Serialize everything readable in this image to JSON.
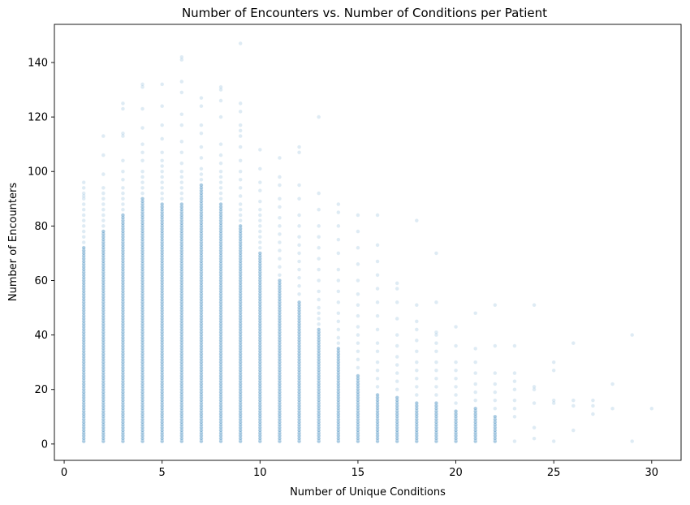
{
  "chart_data": {
    "type": "scatter",
    "title": "Number of Encounters vs. Number of Conditions per Patient",
    "xlabel": "Number of Unique Conditions",
    "ylabel": "Number of Encounters",
    "xlim": [
      -0.5,
      31.5
    ],
    "ylim": [
      -6,
      154
    ],
    "x_ticks": [
      0,
      5,
      10,
      15,
      20,
      25,
      30
    ],
    "y_ticks": [
      0,
      20,
      40,
      60,
      80,
      100,
      120,
      140
    ],
    "grid": false,
    "legend": "none",
    "marker_color": "#1f77b4",
    "marker_alpha": 0.15,
    "columns": [
      {
        "x": 1,
        "dense_max": 72,
        "extra": [
          74,
          76,
          78,
          80,
          82,
          84,
          86,
          88,
          90,
          91,
          92,
          94,
          96
        ]
      },
      {
        "x": 2,
        "dense_max": 78,
        "extra": [
          80,
          82,
          84,
          86,
          88,
          90,
          92,
          94,
          99,
          106,
          113
        ]
      },
      {
        "x": 3,
        "dense_max": 84,
        "extra": [
          86,
          88,
          90,
          92,
          94,
          97,
          100,
          104,
          113,
          114,
          123,
          125
        ]
      },
      {
        "x": 4,
        "dense_max": 90,
        "extra": [
          92,
          94,
          96,
          98,
          100,
          104,
          107,
          110,
          116,
          123,
          131,
          132
        ]
      },
      {
        "x": 5,
        "dense_max": 88,
        "extra": [
          90,
          92,
          94,
          96,
          98,
          100,
          102,
          104,
          107,
          112,
          117,
          124,
          132
        ]
      },
      {
        "x": 6,
        "dense_max": 88,
        "extra": [
          90,
          92,
          94,
          96,
          98,
          100,
          103,
          107,
          111,
          117,
          121,
          129,
          133,
          141,
          142
        ]
      },
      {
        "x": 7,
        "dense_max": 95,
        "extra": [
          97,
          99,
          101,
          105,
          109,
          114,
          117,
          124,
          127
        ]
      },
      {
        "x": 8,
        "dense_max": 88,
        "extra": [
          90,
          92,
          94,
          96,
          98,
          100,
          103,
          106,
          110,
          120,
          126,
          130,
          131
        ]
      },
      {
        "x": 9,
        "dense_max": 80,
        "extra": [
          82,
          84,
          86,
          88,
          91,
          94,
          97,
          100,
          104,
          109,
          113,
          115,
          117,
          122,
          125,
          147
        ]
      },
      {
        "x": 10,
        "dense_max": 70,
        "extra": [
          72,
          74,
          76,
          78,
          80,
          82,
          84,
          86,
          89,
          93,
          96,
          101,
          108
        ]
      },
      {
        "x": 11,
        "dense_max": 60,
        "extra": [
          62,
          65,
          68,
          71,
          74,
          77,
          80,
          83,
          87,
          90,
          95,
          98,
          105
        ]
      },
      {
        "x": 12,
        "dense_max": 52,
        "extra": [
          55,
          58,
          61,
          64,
          67,
          70,
          73,
          76,
          80,
          84,
          90,
          95,
          107,
          109
        ]
      },
      {
        "x": 13,
        "dense_max": 42,
        "extra": [
          44,
          46,
          48,
          50,
          53,
          56,
          60,
          64,
          68,
          72,
          76,
          80,
          86,
          92,
          120
        ]
      },
      {
        "x": 14,
        "dense_max": 35,
        "extra": [
          37,
          39,
          42,
          45,
          48,
          52,
          56,
          60,
          64,
          70,
          75,
          80,
          85,
          88
        ]
      },
      {
        "x": 15,
        "dense_max": 25,
        "extra": [
          28,
          31,
          34,
          37,
          40,
          43,
          47,
          51,
          55,
          60,
          66,
          72,
          78,
          84
        ]
      },
      {
        "x": 16,
        "dense_max": 18,
        "extra": [
          21,
          24,
          27,
          30,
          34,
          37,
          42,
          47,
          52,
          57,
          62,
          67,
          73,
          84
        ]
      },
      {
        "x": 17,
        "dense_max": 17,
        "extra": [
          20,
          23,
          26,
          29,
          32,
          36,
          40,
          46,
          52,
          57,
          59
        ]
      },
      {
        "x": 18,
        "dense_max": 15,
        "extra": [
          18,
          21,
          24,
          27,
          30,
          34,
          38,
          42,
          45,
          51,
          82
        ]
      },
      {
        "x": 19,
        "dense_max": 15,
        "extra": [
          18,
          21,
          24,
          27,
          30,
          34,
          37,
          40,
          41,
          52,
          70
        ]
      },
      {
        "x": 20,
        "dense_max": 12,
        "extra": [
          15,
          18,
          21,
          24,
          27,
          30,
          36,
          43
        ]
      },
      {
        "x": 21,
        "dense_max": 13,
        "extra": [
          16,
          19,
          22,
          26,
          30,
          35,
          48
        ]
      },
      {
        "x": 22,
        "dense_max": 10,
        "extra": [
          13,
          16,
          19,
          22,
          26,
          36,
          51
        ]
      },
      {
        "x": 23,
        "dense_max": 0,
        "extra": [
          1,
          10,
          13,
          16,
          20,
          23,
          26,
          36
        ]
      },
      {
        "x": 24,
        "dense_max": 0,
        "extra": [
          2,
          6,
          15,
          20,
          21,
          51
        ]
      },
      {
        "x": 25,
        "dense_max": 0,
        "extra": [
          1,
          15,
          16,
          27,
          30
        ]
      },
      {
        "x": 26,
        "dense_max": 0,
        "extra": [
          5,
          14,
          16,
          37
        ]
      },
      {
        "x": 27,
        "dense_max": 0,
        "extra": [
          11,
          14,
          16
        ]
      },
      {
        "x": 28,
        "dense_max": 0,
        "extra": [
          13,
          22
        ]
      },
      {
        "x": 29,
        "dense_max": 0,
        "extra": [
          1,
          40
        ]
      },
      {
        "x": 30,
        "dense_max": 0,
        "extra": [
          13
        ]
      }
    ]
  }
}
